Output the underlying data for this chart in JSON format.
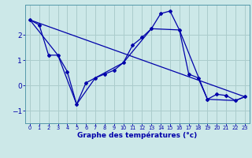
{
  "xlabel": "Graphe des températures (°c)",
  "bg_color": "#cce8e8",
  "line_color": "#0000aa",
  "grid_color": "#aacccc",
  "line1": {
    "x": [
      0,
      1,
      2,
      3,
      4,
      5,
      6,
      7,
      8,
      9,
      10,
      11,
      12,
      13,
      14,
      15,
      16,
      17,
      18,
      19,
      20,
      21,
      22,
      23
    ],
    "y": [
      2.6,
      2.4,
      1.2,
      1.2,
      0.55,
      -0.75,
      0.1,
      0.3,
      0.45,
      0.6,
      0.9,
      1.6,
      1.9,
      2.25,
      2.85,
      2.95,
      2.2,
      0.45,
      0.3,
      -0.55,
      -0.35,
      -0.4,
      -0.6,
      -0.45
    ]
  },
  "line2": {
    "x": [
      0,
      3,
      5,
      7,
      10,
      13,
      16,
      19,
      22,
      23
    ],
    "y": [
      2.6,
      1.2,
      -0.75,
      0.3,
      0.9,
      2.25,
      2.2,
      -0.55,
      -0.6,
      -0.45
    ]
  },
  "line3": {
    "x": [
      0,
      23
    ],
    "y": [
      2.6,
      -0.45
    ]
  },
  "xlim": [
    -0.5,
    23.5
  ],
  "ylim": [
    -1.5,
    3.2
  ],
  "yticks": [
    -1,
    0,
    1,
    2
  ],
  "xticks": [
    0,
    1,
    2,
    3,
    4,
    5,
    6,
    7,
    8,
    9,
    10,
    11,
    12,
    13,
    14,
    15,
    16,
    17,
    18,
    19,
    20,
    21,
    22,
    23
  ]
}
